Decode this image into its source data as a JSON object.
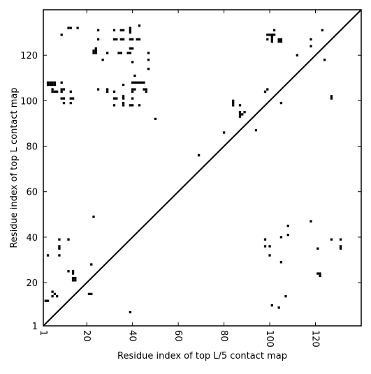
{
  "chart_data": {
    "type": "scatter",
    "title": "",
    "xlabel": "Residue index of top L/5 contact map",
    "ylabel": "Residue index of top L contact map",
    "xlim": [
      1,
      140
    ],
    "ylim": [
      1,
      140
    ],
    "grid": false,
    "legend": null,
    "diagonal": true,
    "x_ticks": [
      1,
      20,
      40,
      60,
      80,
      100,
      120
    ],
    "y_ticks": [
      1,
      20,
      40,
      60,
      80,
      100,
      120
    ],
    "marker_color": "#000000",
    "upper_triangle_contacts": [
      [
        3,
        108
      ],
      [
        4,
        108
      ],
      [
        5,
        108
      ],
      [
        6,
        108
      ],
      [
        3,
        107
      ],
      [
        4,
        107
      ],
      [
        5,
        107
      ],
      [
        6,
        107
      ],
      [
        5,
        105
      ],
      [
        5,
        104
      ],
      [
        6,
        104
      ],
      [
        7,
        104
      ],
      [
        9,
        108
      ],
      [
        9,
        105
      ],
      [
        10,
        105
      ],
      [
        9,
        104
      ],
      [
        9,
        101
      ],
      [
        10,
        101
      ],
      [
        13,
        101
      ],
      [
        14,
        101
      ],
      [
        10,
        99
      ],
      [
        13,
        99
      ],
      [
        13,
        104
      ],
      [
        9,
        129
      ],
      [
        12,
        132
      ],
      [
        13,
        132
      ],
      [
        16,
        132
      ],
      [
        23,
        121
      ],
      [
        24,
        121
      ],
      [
        23,
        122
      ],
      [
        24,
        122
      ],
      [
        24,
        123
      ],
      [
        25,
        127
      ],
      [
        25,
        131
      ],
      [
        27,
        118
      ],
      [
        29,
        121
      ],
      [
        29,
        104
      ],
      [
        29,
        105
      ],
      [
        32,
        104
      ],
      [
        32,
        98
      ],
      [
        25,
        105
      ],
      [
        32,
        131
      ],
      [
        32,
        127
      ],
      [
        33,
        127
      ],
      [
        35,
        131
      ],
      [
        36,
        131
      ],
      [
        35,
        127
      ],
      [
        36,
        127
      ],
      [
        34,
        121
      ],
      [
        35,
        121
      ],
      [
        38,
        121
      ],
      [
        39,
        121
      ],
      [
        39,
        123
      ],
      [
        40,
        123
      ],
      [
        39,
        127
      ],
      [
        40,
        127
      ],
      [
        39,
        130
      ],
      [
        39,
        131
      ],
      [
        39,
        132
      ],
      [
        42,
        127
      ],
      [
        43,
        127
      ],
      [
        43,
        133
      ],
      [
        47,
        121
      ],
      [
        47,
        118
      ],
      [
        47,
        114
      ],
      [
        40,
        117
      ],
      [
        41,
        111
      ],
      [
        32,
        101
      ],
      [
        33,
        101
      ],
      [
        36,
        102
      ],
      [
        36,
        101
      ],
      [
        36,
        99
      ],
      [
        36,
        98
      ],
      [
        39,
        98
      ],
      [
        40,
        98
      ],
      [
        40,
        101
      ],
      [
        43,
        98
      ],
      [
        40,
        104
      ],
      [
        40,
        105
      ],
      [
        41,
        105
      ],
      [
        40,
        108
      ],
      [
        41,
        108
      ],
      [
        42,
        108
      ],
      [
        43,
        108
      ],
      [
        44,
        108
      ],
      [
        45,
        108
      ],
      [
        45,
        105
      ],
      [
        46,
        105
      ],
      [
        46,
        104
      ],
      [
        36,
        107
      ],
      [
        50,
        92
      ],
      [
        69,
        76
      ],
      [
        80,
        86
      ],
      [
        84,
        98
      ],
      [
        84,
        99
      ],
      [
        84,
        100
      ],
      [
        87,
        95
      ],
      [
        87,
        94
      ],
      [
        87,
        93
      ],
      [
        88,
        94
      ],
      [
        89,
        95
      ],
      [
        87,
        98
      ],
      [
        94,
        87
      ],
      [
        98,
        104
      ],
      [
        99,
        105
      ],
      [
        99,
        127
      ],
      [
        99,
        129
      ],
      [
        100,
        129
      ],
      [
        101,
        129
      ],
      [
        101,
        128
      ],
      [
        102,
        129
      ],
      [
        102,
        131
      ],
      [
        101,
        126
      ],
      [
        101,
        127
      ],
      [
        104,
        127
      ],
      [
        105,
        127
      ],
      [
        104,
        126
      ],
      [
        105,
        126
      ],
      [
        105,
        99
      ],
      [
        112,
        120
      ],
      [
        118,
        124
      ],
      [
        118,
        127
      ],
      [
        123,
        131
      ],
      [
        124,
        118
      ],
      [
        127,
        101
      ],
      [
        127,
        102
      ]
    ],
    "lower_triangle_contacts": [
      [
        2,
        12
      ],
      [
        3,
        12
      ],
      [
        5,
        14
      ],
      [
        5,
        16
      ],
      [
        6,
        15
      ],
      [
        7,
        14
      ],
      [
        8,
        32
      ],
      [
        3,
        32
      ],
      [
        8,
        35
      ],
      [
        8,
        36
      ],
      [
        8,
        39
      ],
      [
        12,
        39
      ],
      [
        12,
        25
      ],
      [
        14,
        25
      ],
      [
        14,
        24
      ],
      [
        14,
        22
      ],
      [
        14,
        21
      ],
      [
        15,
        22
      ],
      [
        15,
        21
      ],
      [
        21,
        15
      ],
      [
        22,
        15
      ],
      [
        22,
        28
      ],
      [
        23,
        49
      ],
      [
        39,
        7
      ],
      [
        98,
        39
      ],
      [
        98,
        36
      ],
      [
        100,
        36
      ],
      [
        100,
        32
      ],
      [
        101,
        10
      ],
      [
        104,
        9
      ],
      [
        105,
        29
      ],
      [
        105,
        40
      ],
      [
        107,
        14
      ],
      [
        108,
        45
      ],
      [
        108,
        41
      ],
      [
        118,
        47
      ],
      [
        121,
        35
      ],
      [
        121,
        24
      ],
      [
        122,
        24
      ],
      [
        122,
        23
      ],
      [
        127,
        39
      ],
      [
        131,
        39
      ],
      [
        131,
        35
      ],
      [
        131,
        36
      ]
    ]
  }
}
